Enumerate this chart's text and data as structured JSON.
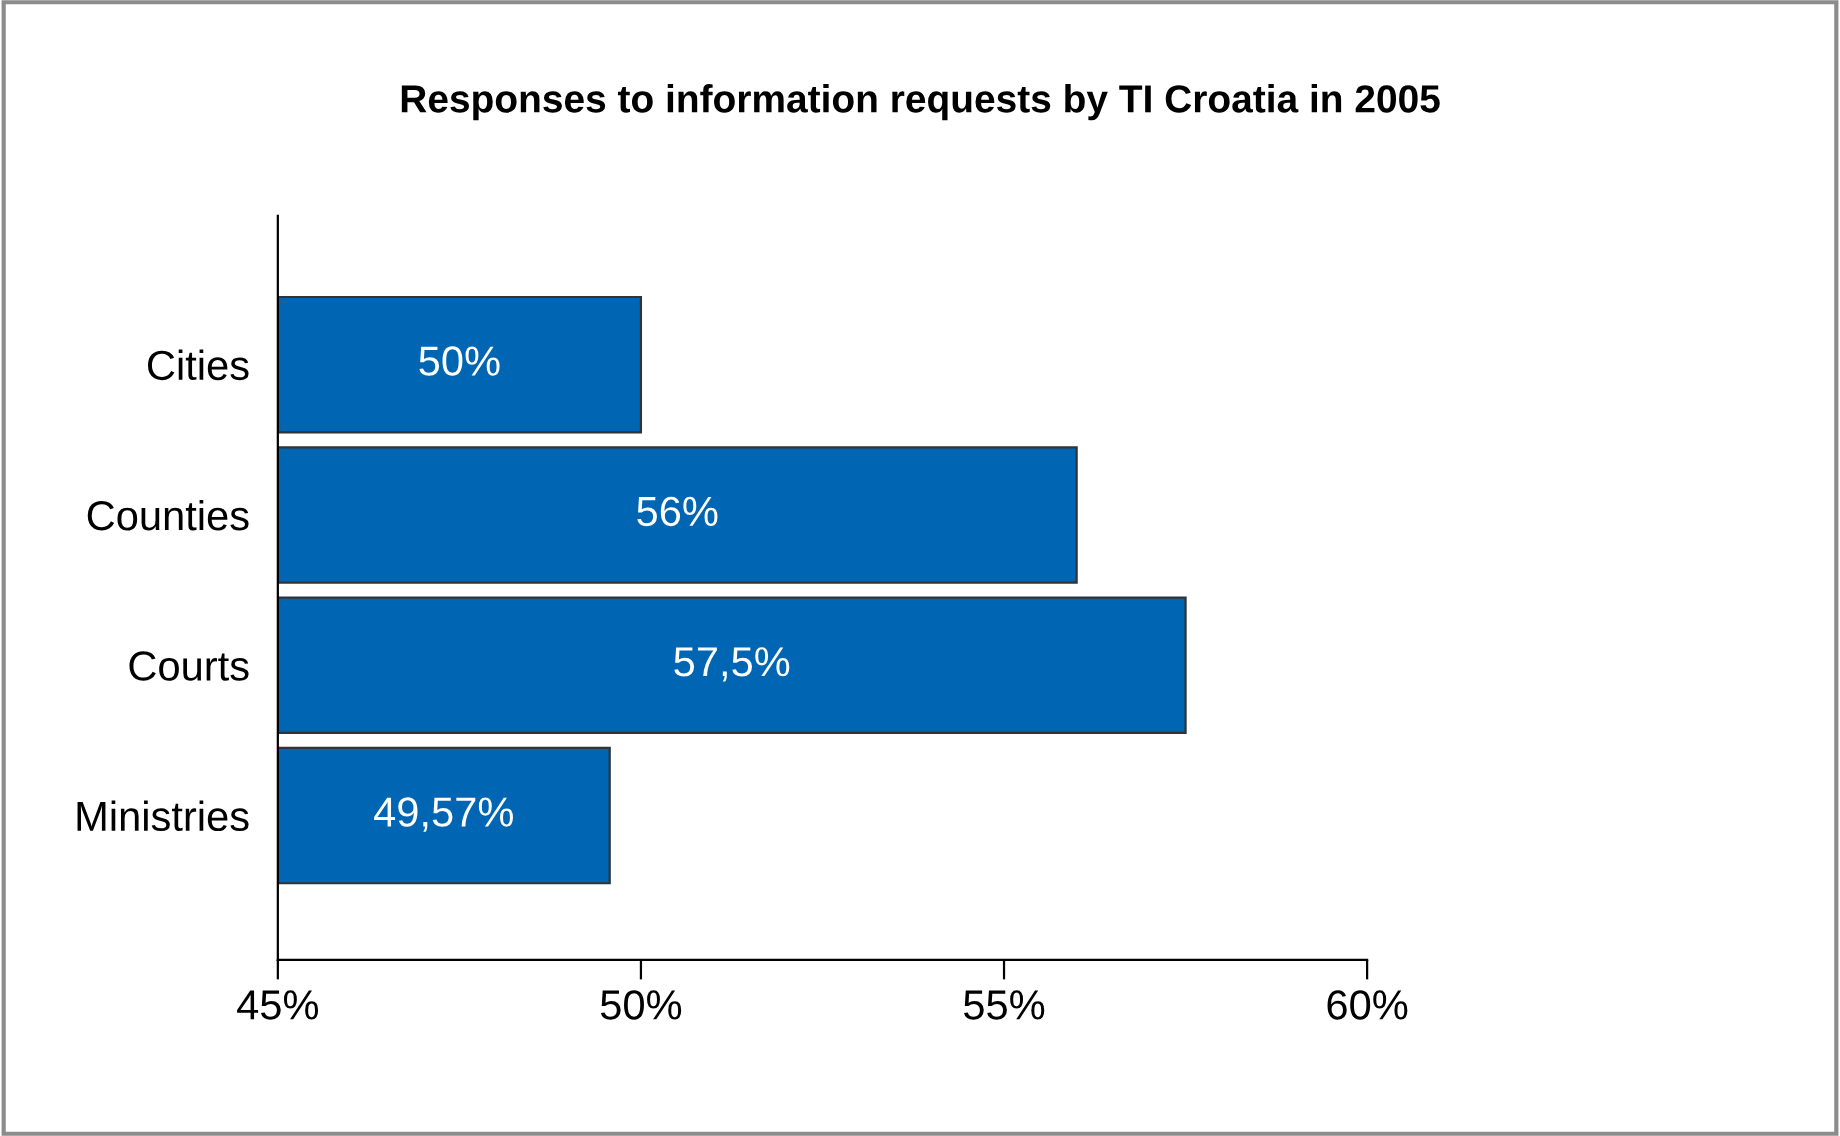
{
  "chart_data": {
    "type": "bar",
    "orientation": "horizontal",
    "title": "Responses to information requests by TI Croatia in 2005",
    "categories": [
      "Cities",
      "Counties",
      "Courts",
      "Ministries"
    ],
    "values": [
      50,
      56,
      57.5,
      49.57
    ],
    "value_labels": [
      "50%",
      "56%",
      "57,5%",
      "49,57%"
    ],
    "color": "#0066b3",
    "xlim": [
      45,
      60
    ],
    "xticks": [
      {
        "value": 45,
        "label": "45%"
      },
      {
        "value": 50,
        "label": "50%"
      },
      {
        "value": 55,
        "label": "55%"
      },
      {
        "value": 60,
        "label": "60%"
      }
    ],
    "grid": false,
    "legend": false
  }
}
